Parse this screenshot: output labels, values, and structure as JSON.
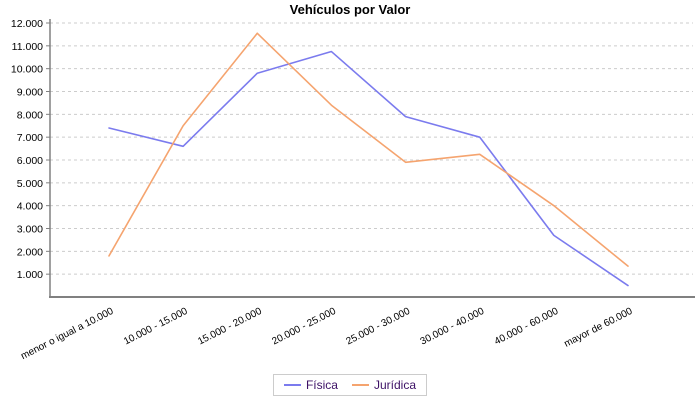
{
  "chart_data": {
    "type": "line",
    "title": "Vehículos por Valor",
    "categories": [
      "menor o igual a 10.000",
      "10.000 - 15.000",
      "15.000 - 20.000",
      "20.000 - 25.000",
      "25.000 - 30.000",
      "30.000 - 40.000",
      "40.000 - 60.000",
      "mayor de 60.000"
    ],
    "series": [
      {
        "name": "Física",
        "color": "#7b7bee",
        "values": [
          7400,
          6600,
          9800,
          10750,
          7900,
          7000,
          2700,
          500
        ]
      },
      {
        "name": "Jurídica",
        "color": "#f5a46f",
        "values": [
          1800,
          7500,
          11550,
          8400,
          5900,
          6250,
          4000,
          1350
        ]
      }
    ],
    "ylim": [
      0,
      12000
    ],
    "y_ticks": [
      "1.000",
      "2.000",
      "3.000",
      "4.000",
      "5.000",
      "6.000",
      "7.000",
      "8.000",
      "9.000",
      "10.000",
      "11.000",
      "12.000"
    ],
    "xlabel": "",
    "ylabel": "",
    "grid": "horizontal-dashed",
    "legend_position": "bottom-center"
  },
  "colors": {
    "background": "#ffffff",
    "grid": "#cccccc",
    "axis": "#808080",
    "tick_label": "#000000",
    "category_label": "#000000",
    "title": "#000000",
    "legend_text": "#3d1166",
    "legend_border": "#cccccc"
  }
}
